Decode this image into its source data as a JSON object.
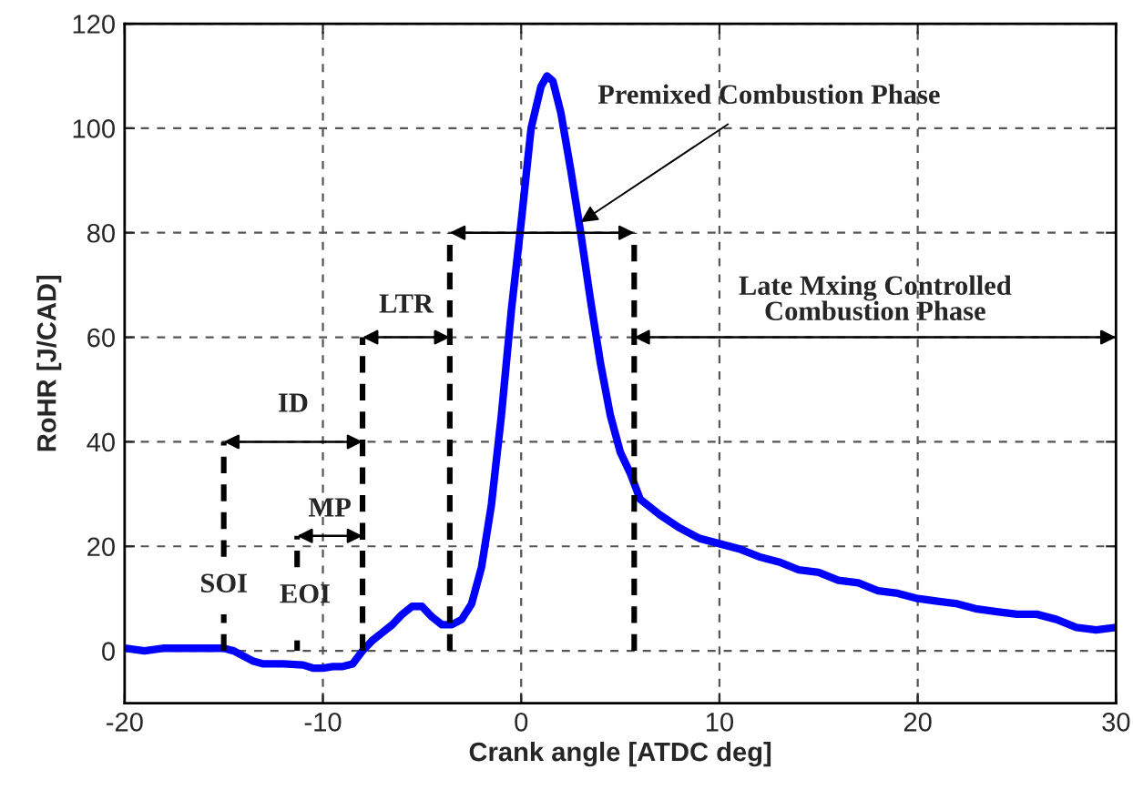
{
  "chart_data": {
    "type": "line",
    "xlabel": "Crank angle [ATDC deg]",
    "ylabel": "RoHR [J/CAD]",
    "xlim": [
      -20,
      30
    ],
    "ylim": [
      -10,
      120
    ],
    "xticks": [
      -20,
      -10,
      0,
      10,
      20,
      30
    ],
    "yticks": [
      0,
      20,
      40,
      60,
      80,
      100,
      120
    ],
    "grid": true,
    "legend": false,
    "marker": "none",
    "series": [
      {
        "color": "#0000ff",
        "line_style": "solid",
        "x": [
          -20,
          -19,
          -18,
          -17,
          -16,
          -15,
          -14.5,
          -14,
          -13.5,
          -13,
          -12,
          -11,
          -10.5,
          -10,
          -9.5,
          -9,
          -8.5,
          -8,
          -7.5,
          -7,
          -6.5,
          -6,
          -5.5,
          -5,
          -4.5,
          -4,
          -3.5,
          -3,
          -2.5,
          -2,
          -1.5,
          -1,
          -0.5,
          0,
          0.5,
          1,
          1.3,
          1.6,
          2,
          2.5,
          3,
          3.5,
          4,
          4.5,
          5,
          5.5,
          6,
          7,
          8,
          9,
          10,
          11,
          12,
          13,
          14,
          15,
          16,
          17,
          18,
          19,
          20,
          21,
          22,
          23,
          24,
          25,
          26,
          27,
          28,
          29,
          30
        ],
        "values": [
          0.5,
          0,
          0.5,
          0.5,
          0.5,
          0.5,
          0,
          -1,
          -2,
          -2.5,
          -2.5,
          -2.7,
          -3.3,
          -3.3,
          -3,
          -3,
          -2.5,
          0,
          2,
          3.5,
          5,
          7,
          8.5,
          8.5,
          6.5,
          5,
          5,
          6,
          9,
          16,
          28,
          45,
          65,
          82,
          100,
          108,
          110,
          109,
          103,
          92,
          80,
          67,
          55,
          45,
          38,
          34,
          29,
          26,
          23.5,
          21.5,
          20.5,
          19.5,
          18,
          17,
          15.5,
          15,
          13.5,
          13,
          11.5,
          11,
          10,
          9.5,
          9,
          8,
          7.5,
          7,
          7,
          6,
          4.5,
          4,
          4.5
        ]
      },
      {
        "color": "#000000",
        "line_style": "dashed",
        "x": [
          -15,
          -15
        ],
        "values": [
          0,
          7
        ]
      },
      {
        "color": "#000000",
        "line_style": "dashed",
        "x": [
          -15,
          -15
        ],
        "values": [
          18,
          40
        ]
      },
      {
        "color": "#000000",
        "line_style": "dashed",
        "x": [
          -11.3,
          -11.3
        ],
        "values": [
          0,
          2
        ]
      },
      {
        "color": "#000000",
        "line_style": "dashed",
        "x": [
          -11.3,
          -11.3
        ],
        "values": [
          16,
          22
        ]
      },
      {
        "color": "#000000",
        "line_style": "dashed",
        "x": [
          -8,
          -8
        ],
        "values": [
          0,
          60
        ]
      },
      {
        "color": "#000000",
        "line_style": "dashed",
        "x": [
          -3.6,
          -3.6
        ],
        "values": [
          0,
          80
        ]
      },
      {
        "color": "#000000",
        "line_style": "dashed",
        "x": [
          5.7,
          5.7
        ],
        "values": [
          0,
          80
        ]
      }
    ],
    "annotations": [
      "SOI",
      "EOI",
      "MP",
      "ID",
      "LTR",
      {
        "text": "Premixed Combustion Phase",
        "x": 3,
        "y": 82
      },
      "Late Mxing Controlled\nCombustion Phase"
    ]
  }
}
